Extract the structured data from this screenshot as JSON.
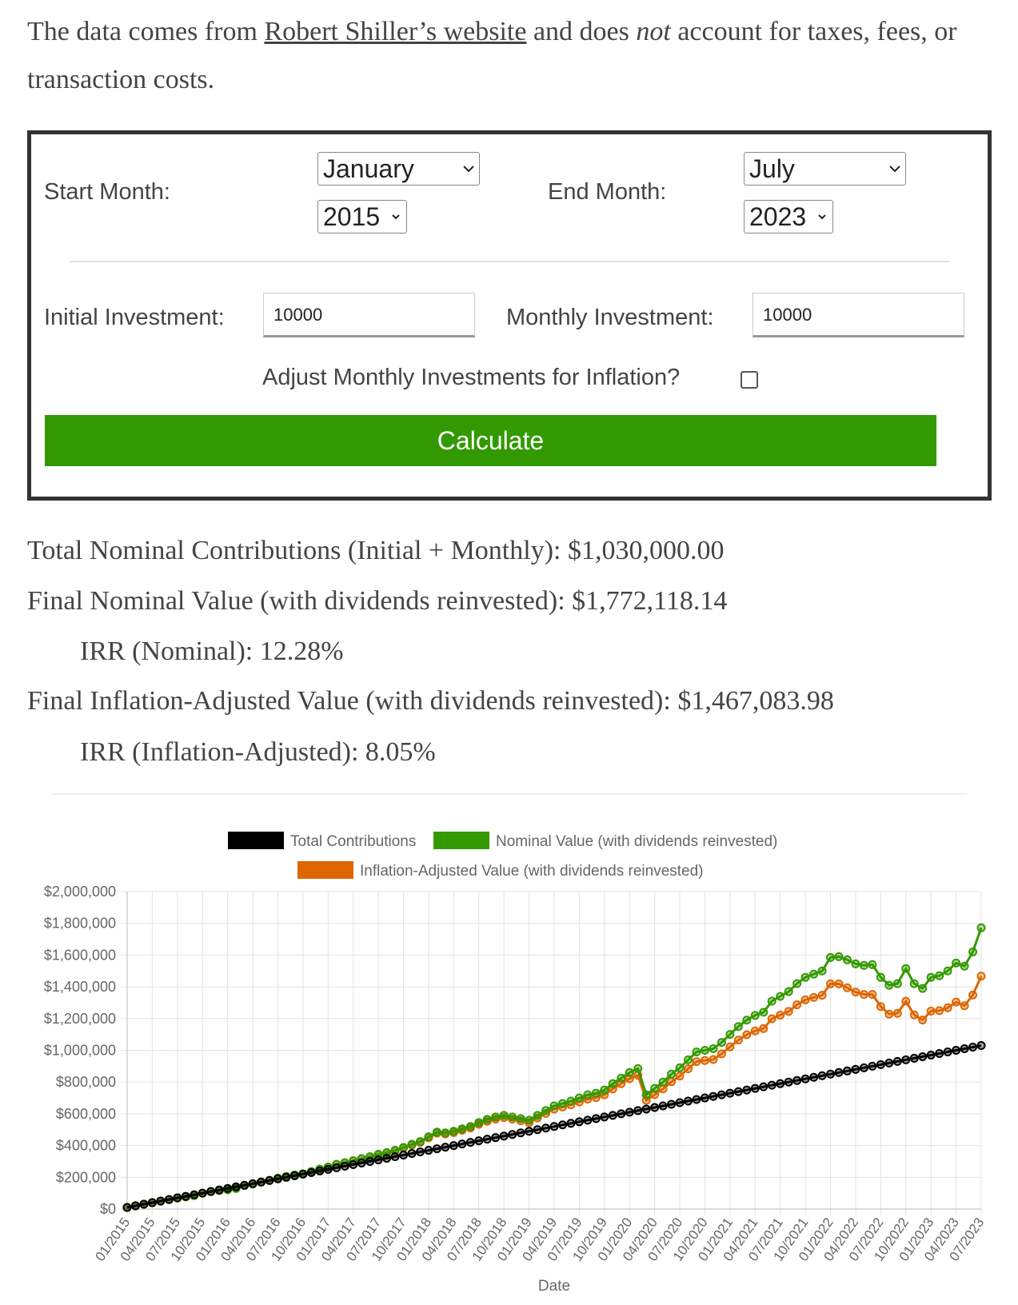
{
  "intro": {
    "text_before": "The data comes from",
    "link": "Robert Shiller’s website",
    "text_mid": "and does",
    "emphasis": "not",
    "text_after": "account for taxes, fees, or transaction costs."
  },
  "form": {
    "start_month_label": "Start Month:",
    "start_month": "January",
    "start_year": "2015",
    "end_month_label": "End Month:",
    "end_month": "July",
    "end_year": "2023",
    "initial_label": "Initial Investment:",
    "initial_value": "10000",
    "monthly_label": "Monthly Investment:",
    "monthly_value": "10000",
    "inflation_label": "Adjust Monthly Investments for Inflation?",
    "button": "Calculate"
  },
  "results": [
    "Total Nominal Contributions (Initial + Monthly): $1,030,000.00",
    "Final Nominal Value (with dividends reinvested): $1,772,118.14",
    "IRR (Nominal): 12.28%",
    "Final Inflation-Adjusted Value (with dividends reinvested): $1,467,083.98",
    "IRR (Inflation-Adjusted): 8.05%"
  ],
  "chart_data": {
    "type": "line",
    "x_label": "Date",
    "categories": [
      "01/2015",
      null,
      null,
      "04/2015",
      null,
      null,
      "07/2015",
      null,
      null,
      "10/2015",
      null,
      null,
      "01/2016",
      null,
      null,
      "04/2016",
      null,
      null,
      "07/2016",
      null,
      null,
      "10/2016",
      null,
      null,
      "01/2017",
      null,
      null,
      "04/2017",
      null,
      null,
      "07/2017",
      null,
      null,
      "10/2017",
      null,
      null,
      "01/2018",
      null,
      null,
      "04/2018",
      null,
      null,
      "07/2018",
      null,
      null,
      "10/2018",
      null,
      null,
      "01/2019",
      null,
      null,
      "04/2019",
      null,
      null,
      "07/2019",
      null,
      null,
      "10/2019",
      null,
      null,
      "01/2020",
      null,
      null,
      "04/2020",
      null,
      null,
      "07/2020",
      null,
      null,
      "10/2020",
      null,
      null,
      "01/2021",
      null,
      null,
      "04/2021",
      null,
      null,
      "07/2021",
      null,
      null,
      "10/2021",
      null,
      null,
      "01/2022",
      null,
      null,
      "04/2022",
      null,
      null,
      "07/2022",
      null,
      null,
      "10/2022",
      null,
      null,
      "01/2023",
      null,
      null,
      "04/2023",
      null,
      null,
      "07/2023"
    ],
    "ylim": [
      0,
      2000000
    ],
    "yticks": [
      {
        "value": 0,
        "label": "$0"
      },
      {
        "value": 200000,
        "label": "$200,000"
      },
      {
        "value": 400000,
        "label": "$400,000"
      },
      {
        "value": 600000,
        "label": "$600,000"
      },
      {
        "value": 800000,
        "label": "$800,000"
      },
      {
        "value": 1000000,
        "label": "$1,000,000"
      },
      {
        "value": 1200000,
        "label": "$1,200,000"
      },
      {
        "value": 1400000,
        "label": "$1,400,000"
      },
      {
        "value": 1600000,
        "label": "$1,600,000"
      },
      {
        "value": 1800000,
        "label": "$1,800,000"
      },
      {
        "value": 2000000,
        "label": "$2,000,000"
      }
    ],
    "grid": true,
    "series": [
      {
        "name": "Total Contributions",
        "color": "#000000",
        "values": [
          10000,
          20000,
          30000,
          40000,
          50000,
          60000,
          70000,
          80000,
          90000,
          100000,
          110000,
          120000,
          130000,
          140000,
          150000,
          160000,
          170000,
          180000,
          190000,
          200000,
          210000,
          220000,
          230000,
          240000,
          250000,
          260000,
          270000,
          280000,
          290000,
          300000,
          310000,
          320000,
          330000,
          340000,
          350000,
          360000,
          370000,
          380000,
          390000,
          400000,
          410000,
          420000,
          430000,
          440000,
          450000,
          460000,
          470000,
          480000,
          490000,
          500000,
          510000,
          520000,
          530000,
          540000,
          550000,
          560000,
          570000,
          580000,
          590000,
          600000,
          610000,
          620000,
          630000,
          640000,
          650000,
          660000,
          670000,
          680000,
          690000,
          700000,
          710000,
          720000,
          730000,
          740000,
          750000,
          760000,
          770000,
          780000,
          790000,
          800000,
          810000,
          820000,
          830000,
          840000,
          850000,
          860000,
          870000,
          880000,
          890000,
          900000,
          910000,
          920000,
          930000,
          940000,
          950000,
          960000,
          970000,
          980000,
          990000,
          1000000,
          1010000,
          1020000,
          1030000
        ]
      },
      {
        "name": "Nominal Value (with dividends reinvested)",
        "color": "#339900",
        "values": [
          10000,
          21000,
          31000,
          41000,
          51000,
          60000,
          71000,
          77000,
          85000,
          100000,
          110000,
          117000,
          122000,
          130000,
          148000,
          158000,
          170000,
          180000,
          195000,
          205000,
          215000,
          222000,
          236000,
          252000,
          265000,
          282000,
          292000,
          305000,
          318000,
          330000,
          345000,
          356000,
          370000,
          388000,
          408000,
          425000,
          455000,
          485000,
          480000,
          490000,
          505000,
          520000,
          545000,
          565000,
          580000,
          590000,
          580000,
          570000,
          560000,
          590000,
          620000,
          650000,
          665000,
          680000,
          700000,
          720000,
          730000,
          750000,
          790000,
          825000,
          860000,
          885000,
          720000,
          760000,
          800000,
          850000,
          890000,
          940000,
          990000,
          1000000,
          1010000,
          1050000,
          1100000,
          1150000,
          1190000,
          1220000,
          1240000,
          1310000,
          1340000,
          1370000,
          1420000,
          1460000,
          1480000,
          1500000,
          1585000,
          1590000,
          1570000,
          1545000,
          1535000,
          1540000,
          1460000,
          1410000,
          1420000,
          1515000,
          1420000,
          1390000,
          1460000,
          1470000,
          1500000,
          1550000,
          1530000,
          1620000,
          1772118.14
        ]
      },
      {
        "name": "Inflation-Adjusted Value (with dividends reinvested)",
        "color": "#dd6600",
        "values": [
          10000,
          21000,
          31000,
          41000,
          51000,
          60000,
          71000,
          77000,
          85000,
          100000,
          110000,
          117000,
          122000,
          130000,
          148000,
          158000,
          170000,
          180000,
          194000,
          204000,
          214000,
          221000,
          235000,
          251000,
          264000,
          280000,
          290000,
          303000,
          316000,
          327000,
          342000,
          353000,
          366000,
          384000,
          403000,
          420000,
          449000,
          478000,
          473000,
          482000,
          496000,
          511000,
          534000,
          553000,
          567000,
          576000,
          566000,
          556000,
          545000,
          574000,
          602000,
          630000,
          643000,
          657000,
          675000,
          693000,
          702000,
          720000,
          757000,
          790000,
          821000,
          843000,
          685000,
          721000,
          757000,
          802000,
          838000,
          884000,
          929000,
          936000,
          942000,
          978000,
          1022000,
          1065000,
          1098000,
          1122000,
          1137000,
          1199000,
          1222000,
          1245000,
          1287000,
          1318000,
          1333000,
          1347000,
          1419000,
          1418000,
          1394000,
          1367000,
          1352000,
          1352000,
          1276000,
          1228000,
          1233000,
          1309000,
          1223000,
          1191000,
          1247000,
          1250000,
          1268000,
          1304000,
          1281000,
          1348000,
          1467083.98
        ]
      }
    ]
  }
}
